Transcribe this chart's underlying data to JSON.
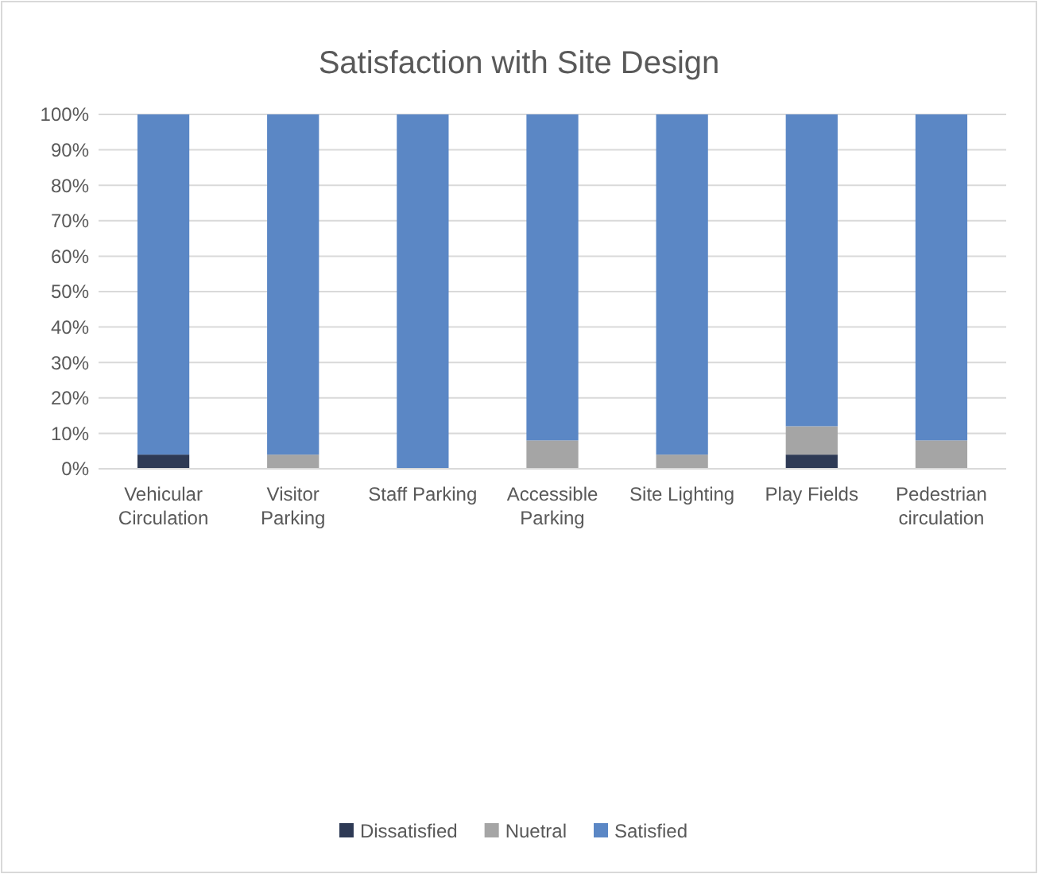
{
  "chart_data": {
    "type": "bar",
    "title": "Satisfaction with Site Design",
    "stacked": true,
    "categories": [
      "Vehicular Circulation",
      "Visitor Parking",
      "Staff Parking",
      "Accessible Parking",
      "Site Lighting",
      "Play Fields",
      "Pedestrian circulation"
    ],
    "series": [
      {
        "name": "Dissatisfied",
        "color": "#2e3a55",
        "values": [
          4,
          0,
          0,
          0,
          0,
          4,
          0
        ]
      },
      {
        "name": "Nuetral",
        "color": "#a5a5a5",
        "values": [
          0,
          4,
          0,
          8,
          4,
          8,
          8
        ]
      },
      {
        "name": "Satisfied",
        "color": "#5b87c5",
        "values": [
          96,
          96,
          100,
          92,
          96,
          88,
          92
        ]
      }
    ],
    "ylim": [
      0,
      100
    ],
    "yticks": [
      {
        "value": 0,
        "label": "0%"
      },
      {
        "value": 10,
        "label": "10%"
      },
      {
        "value": 20,
        "label": "20%"
      },
      {
        "value": 30,
        "label": "30%"
      },
      {
        "value": 40,
        "label": "40%"
      },
      {
        "value": 50,
        "label": "50%"
      },
      {
        "value": 60,
        "label": "60%"
      },
      {
        "value": 70,
        "label": "70%"
      },
      {
        "value": 80,
        "label": "80%"
      },
      {
        "value": 90,
        "label": "90%"
      },
      {
        "value": 100,
        "label": "100%"
      }
    ],
    "grid": "y",
    "legend": "bottom"
  }
}
